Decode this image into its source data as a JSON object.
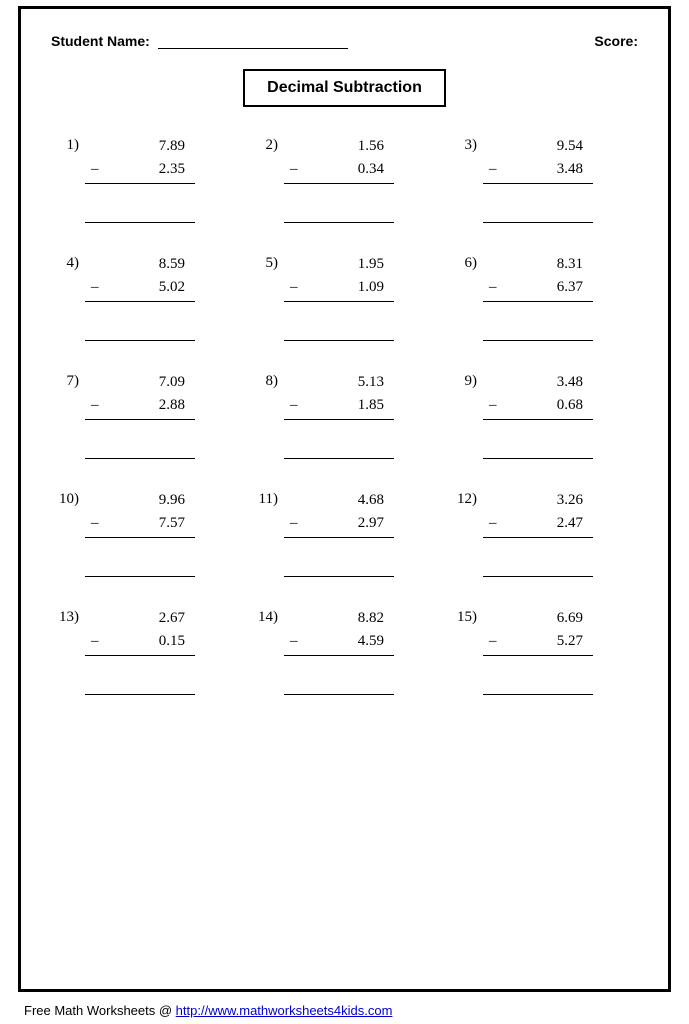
{
  "header": {
    "name_label": "Student Name:",
    "score_label": "Score:"
  },
  "title": "Decimal Subtraction",
  "minus_sign": "–",
  "problems": [
    {
      "n": "1)",
      "a": "7.89",
      "b": "2.35"
    },
    {
      "n": "2)",
      "a": "1.56",
      "b": "0.34"
    },
    {
      "n": "3)",
      "a": "9.54",
      "b": "3.48"
    },
    {
      "n": "4)",
      "a": "8.59",
      "b": "5.02"
    },
    {
      "n": "5)",
      "a": "1.95",
      "b": "1.09"
    },
    {
      "n": "6)",
      "a": "8.31",
      "b": "6.37"
    },
    {
      "n": "7)",
      "a": "7.09",
      "b": "2.88"
    },
    {
      "n": "8)",
      "a": "5.13",
      "b": "1.85"
    },
    {
      "n": "9)",
      "a": "3.48",
      "b": "0.68"
    },
    {
      "n": "10)",
      "a": "9.96",
      "b": "7.57"
    },
    {
      "n": "11)",
      "a": "4.68",
      "b": "2.97"
    },
    {
      "n": "12)",
      "a": "3.26",
      "b": "2.47"
    },
    {
      "n": "13)",
      "a": "2.67",
      "b": "0.15"
    },
    {
      "n": "14)",
      "a": "8.82",
      "b": "4.59"
    },
    {
      "n": "15)",
      "a": "6.69",
      "b": "5.27"
    }
  ],
  "footer": {
    "prefix": "Free Math Worksheets @ ",
    "url_text": "http://www.mathworksheets4kids.com"
  }
}
